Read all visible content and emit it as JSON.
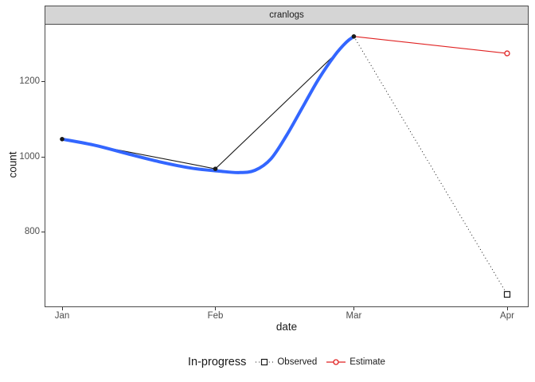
{
  "figure": {
    "facet_title": "cranlogs"
  },
  "chart_data": {
    "type": "line",
    "facet_title": "cranlogs",
    "xlabel": "date",
    "ylabel": "count",
    "x_tick_labels": [
      "Jan",
      "Feb",
      "Mar",
      "Apr"
    ],
    "x_tick_days": [
      0,
      31,
      59,
      90
    ],
    "y_ticks": [
      800,
      1000,
      1200
    ],
    "ylim": [
      602,
      1353
    ],
    "xlim_days": [
      0,
      90
    ],
    "grid": false,
    "legend": {
      "title": "In-progress",
      "position": "bottom",
      "items": [
        "Observed",
        "Estimate"
      ]
    },
    "colors": {
      "observed": "#1a1a1a",
      "estimate": "#e02222",
      "smooth": "#3366ff",
      "strip_fill": "#d5d5d5",
      "panel_border": "#4b4b4b",
      "tick_label": "#4d4d4d"
    },
    "series": [
      {
        "name": "observed",
        "color": "#1a1a1a",
        "points": [
          {
            "month": "Jan",
            "day": 0,
            "value": 1047
          },
          {
            "month": "Feb",
            "day": 31,
            "value": 968
          },
          {
            "month": "Mar",
            "day": 59,
            "value": 1320
          },
          {
            "month": "Apr",
            "day": 90,
            "value": 634
          }
        ],
        "solid_segment_months": [
          "Jan",
          "Feb",
          "Mar"
        ],
        "dotted_segment_months": [
          "Mar",
          "Apr"
        ],
        "marker_filled_circle_months": [
          "Jan",
          "Feb",
          "Mar"
        ],
        "marker_open_square_months": [
          "Apr"
        ]
      },
      {
        "name": "estimate",
        "color": "#e02222",
        "points": [
          {
            "month": "Mar",
            "day": 59,
            "value": 1320
          },
          {
            "month": "Apr",
            "day": 90,
            "value": 1275
          }
        ],
        "marker_open_circle_months": [
          "Apr"
        ]
      },
      {
        "name": "smooth",
        "color": "#3366ff",
        "stroke_width": 4,
        "samples_day_value": [
          [
            0,
            1047
          ],
          [
            6.8,
            1030
          ],
          [
            13.2,
            1008
          ],
          [
            19.6,
            987
          ],
          [
            26.1,
            970
          ],
          [
            31.7,
            962
          ],
          [
            35.7,
            958
          ],
          [
            39,
            964
          ],
          [
            42.2,
            994
          ],
          [
            45.4,
            1057
          ],
          [
            48.6,
            1131
          ],
          [
            51.8,
            1205
          ],
          [
            55.1,
            1269
          ],
          [
            57.5,
            1305
          ],
          [
            59,
            1320
          ]
        ]
      }
    ]
  }
}
